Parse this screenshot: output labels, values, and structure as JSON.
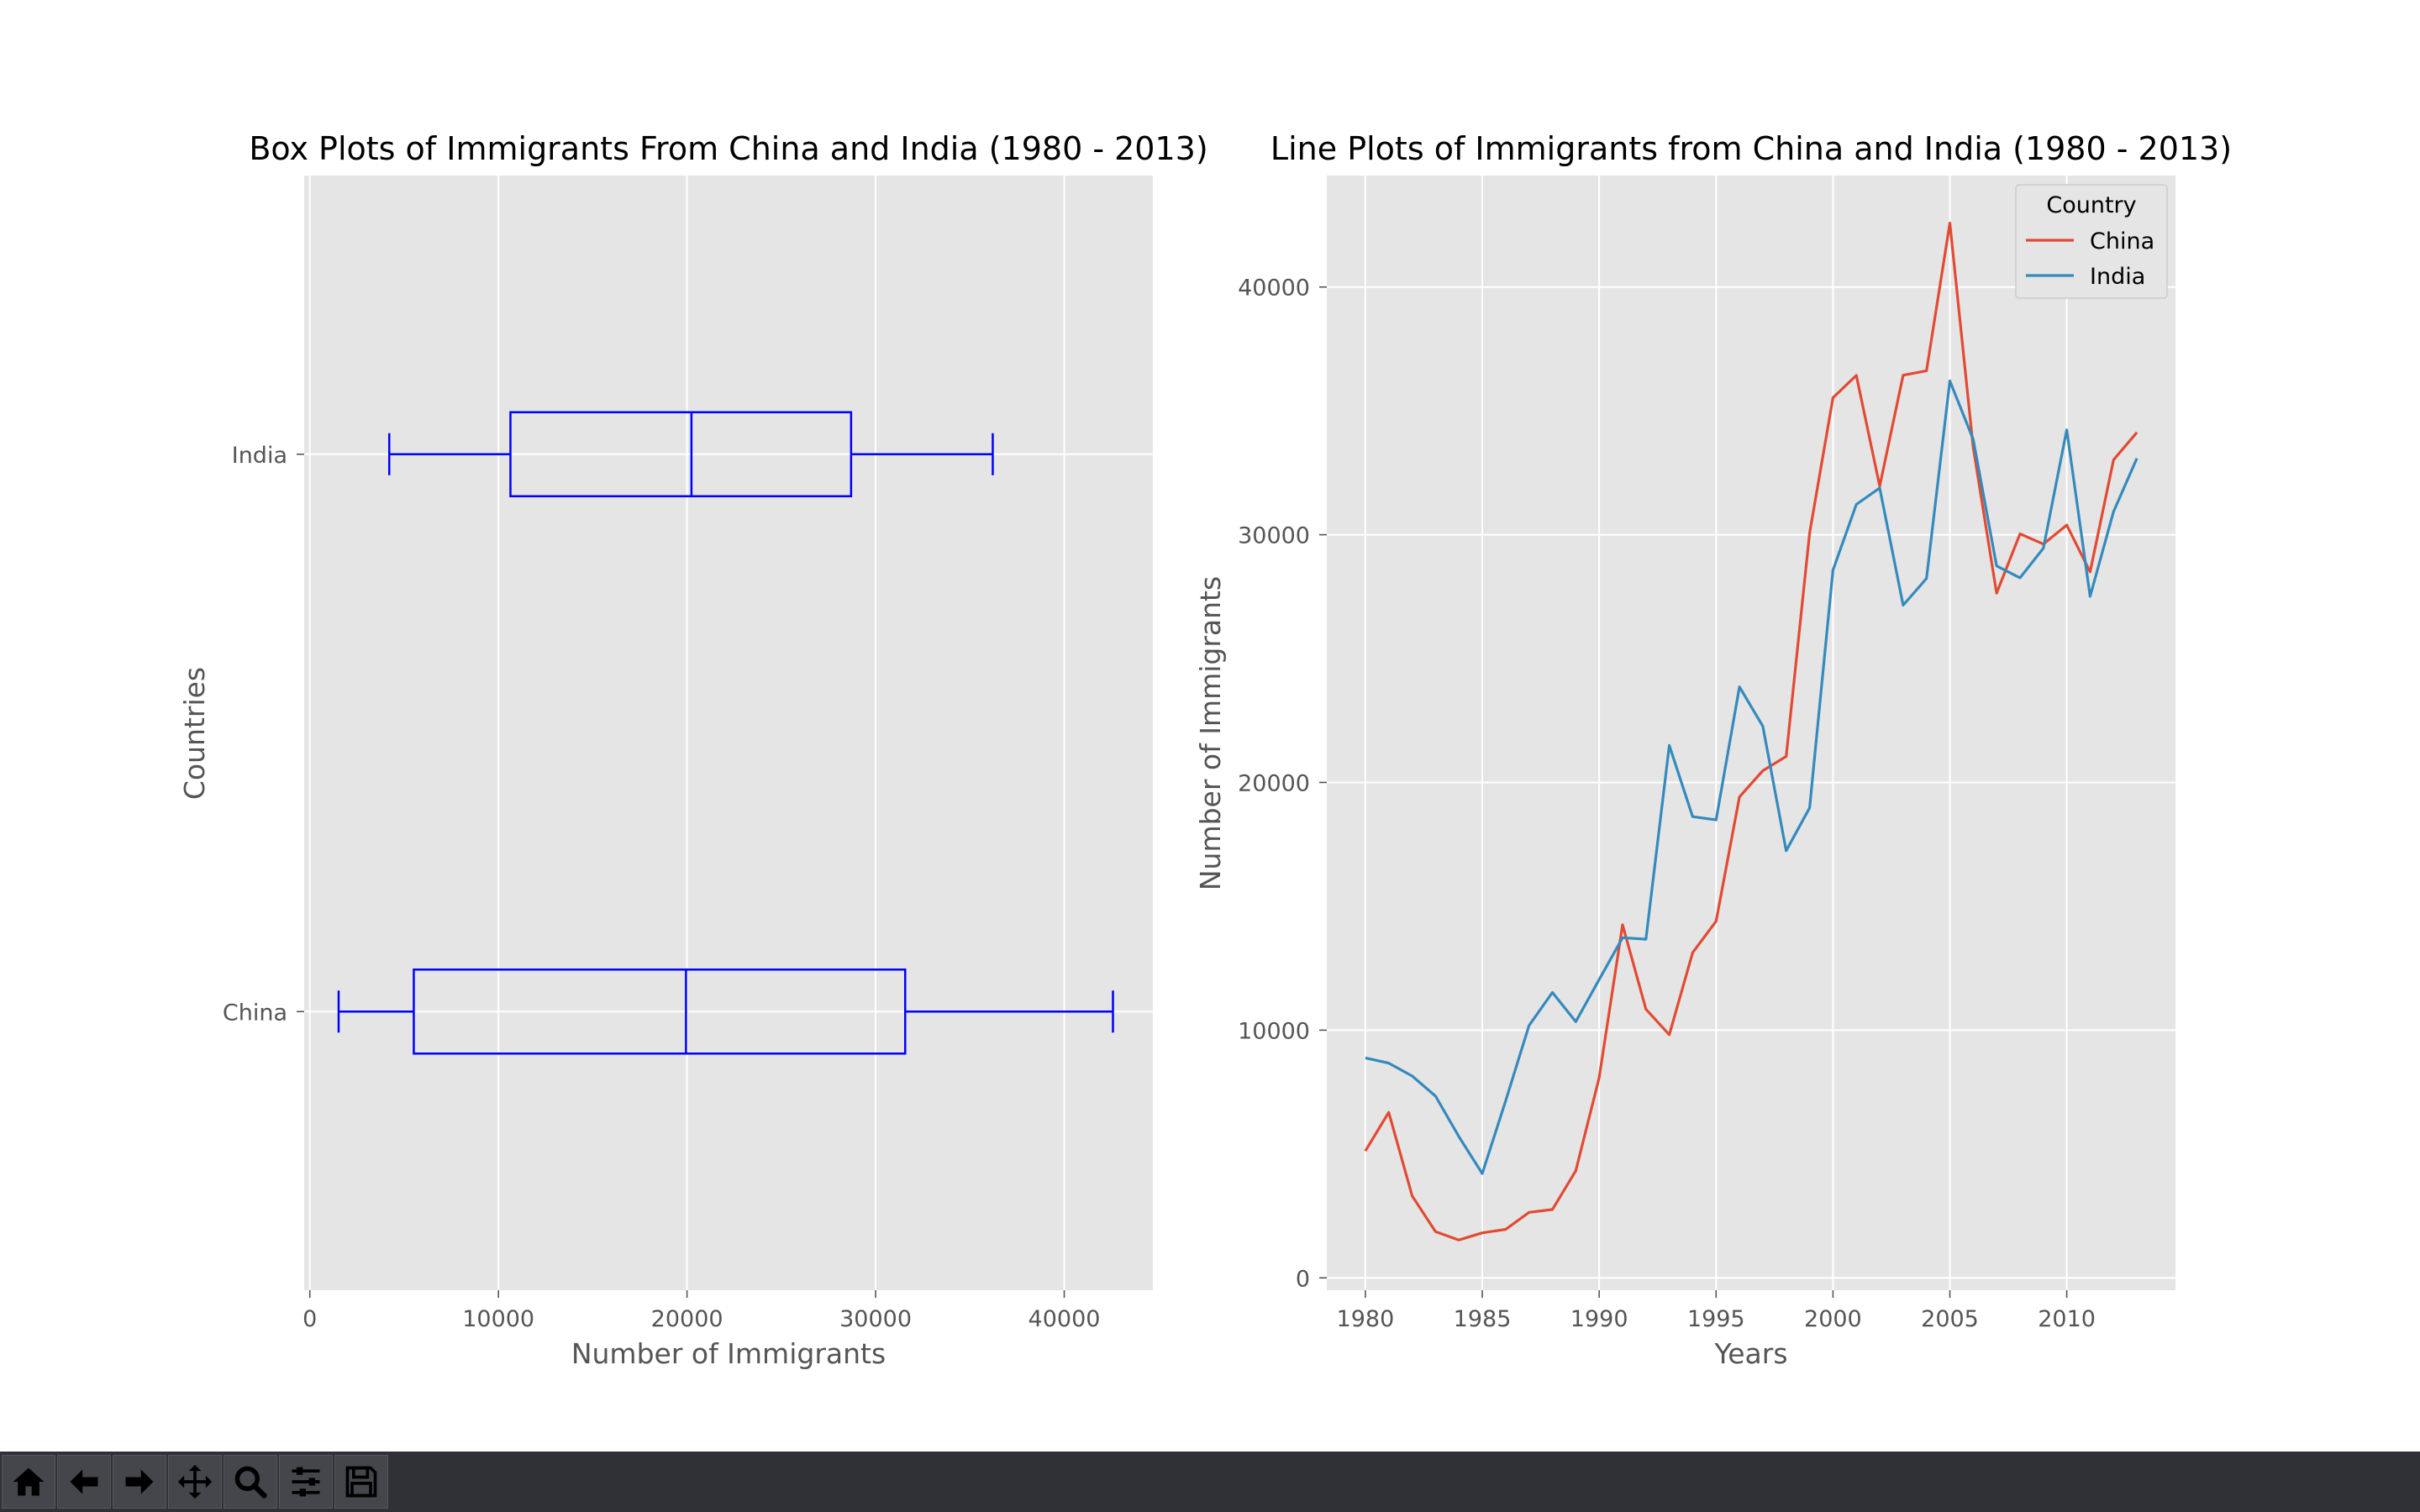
{
  "chart_data": [
    {
      "type": "box",
      "orientation": "horizontal",
      "title": "Box Plots of Immigrants From China and India (1980 - 2013)",
      "xlabel": "Number of Immigrants",
      "ylabel": "Countries",
      "xlim": [
        -300,
        44700
      ],
      "xticks": [
        0,
        10000,
        20000,
        30000,
        40000
      ],
      "grid": true,
      "color": "#0000ff",
      "categories": [
        "China",
        "India"
      ],
      "boxes": [
        {
          "name": "China",
          "whisker_low": 1527,
          "q1": 5512,
          "median": 19945,
          "q3": 31568,
          "whisker_high": 42584
        },
        {
          "name": "India",
          "whisker_low": 4211,
          "q1": 10637,
          "median": 20235,
          "q3": 28699,
          "whisker_high": 36210
        }
      ]
    },
    {
      "type": "line",
      "title": "Line Plots of Immigrants from China and India (1980 - 2013)",
      "xlabel": "Years",
      "ylabel": "Number of Immigrants",
      "xlim": [
        1978.35,
        2014.65
      ],
      "ylim": [
        -500,
        44500
      ],
      "xticks": [
        1980,
        1985,
        1990,
        1995,
        2000,
        2005,
        2010
      ],
      "yticks": [
        0,
        10000,
        20000,
        30000,
        40000
      ],
      "grid": true,
      "legend": {
        "title": "Country",
        "position": "top-right"
      },
      "x": [
        1980,
        1981,
        1982,
        1983,
        1984,
        1985,
        1986,
        1987,
        1988,
        1989,
        1990,
        1991,
        1992,
        1993,
        1994,
        1995,
        1996,
        1997,
        1998,
        1999,
        2000,
        2001,
        2002,
        2003,
        2004,
        2005,
        2006,
        2007,
        2008,
        2009,
        2010,
        2011,
        2012,
        2013
      ],
      "series": [
        {
          "name": "China",
          "color": "#e24a33",
          "values": [
            5123,
            6682,
            3308,
            1863,
            1527,
            1816,
            1960,
            2643,
            2758,
            4323,
            8076,
            14255,
            10846,
            9817,
            13128,
            14398,
            19415,
            20475,
            21049,
            30069,
            35529,
            36434,
            31961,
            36439,
            36619,
            42584,
            33518,
            27642,
            30037,
            29622,
            30391,
            28502,
            33024,
            34129
          ]
        },
        {
          "name": "India",
          "color": "#348abd",
          "values": [
            8880,
            8670,
            8147,
            7338,
            5704,
            4211,
            7150,
            10189,
            11522,
            10343,
            12041,
            13734,
            13673,
            21496,
            18620,
            18489,
            23859,
            22268,
            17241,
            18974,
            28572,
            31223,
            31889,
            27155,
            28235,
            36210,
            33848,
            28742,
            28261,
            29456,
            34235,
            27509,
            30933,
            33087
          ]
        }
      ]
    }
  ],
  "toolbar": {
    "items": [
      {
        "name": "home-button",
        "icon": "home-icon"
      },
      {
        "name": "back-button",
        "icon": "arrow-left-icon"
      },
      {
        "name": "forward-button",
        "icon": "arrow-right-icon"
      },
      {
        "name": "pan-button",
        "icon": "move-icon"
      },
      {
        "name": "zoom-button",
        "icon": "magnifier-icon"
      },
      {
        "name": "configure-subplots-button",
        "icon": "sliders-icon"
      },
      {
        "name": "save-button",
        "icon": "floppy-disk-icon"
      }
    ],
    "background": "#2f3136"
  }
}
